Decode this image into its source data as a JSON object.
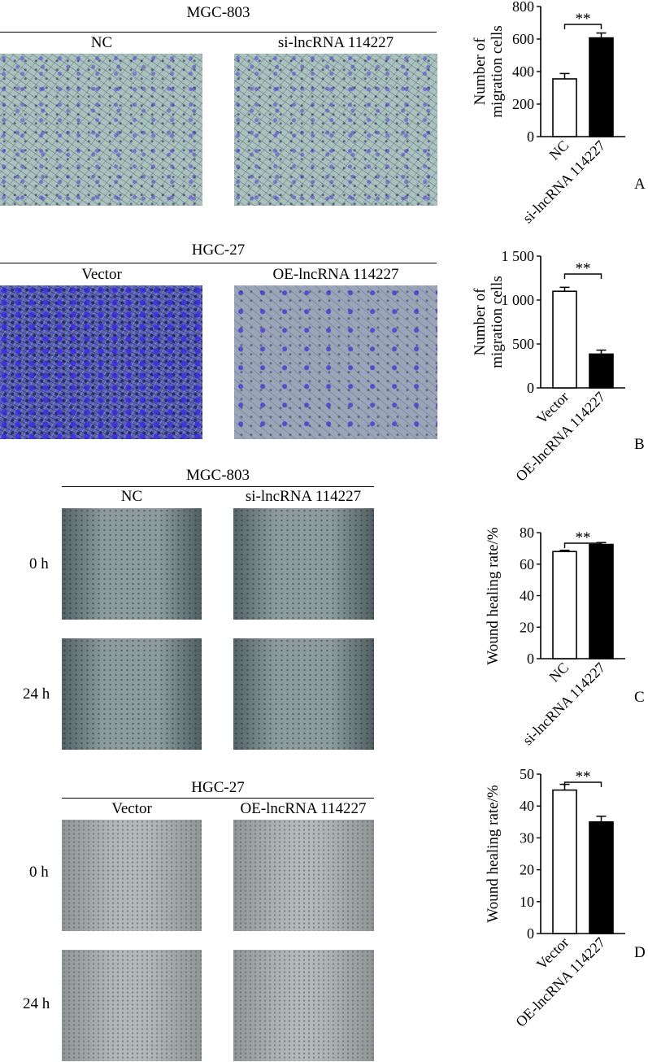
{
  "panels": {
    "A": {
      "letter": "A",
      "cell_line": "MGC-803",
      "groups": [
        "NC",
        "si-lncRNA 114227"
      ]
    },
    "B": {
      "letter": "B",
      "cell_line": "HGC-27",
      "groups": [
        "Vector",
        "OE-lncRNA 114227"
      ]
    },
    "C": {
      "letter": "C",
      "cell_line": "MGC-803",
      "groups": [
        "NC",
        "si-lncRNA 114227"
      ],
      "timepoints": [
        "0 h",
        "24 h"
      ]
    },
    "D": {
      "letter": "D",
      "cell_line": "HGC-27",
      "groups": [
        "Vector",
        "OE-lncRNA 114227"
      ],
      "timepoints": [
        "0 h",
        "24 h"
      ]
    }
  },
  "colors": {
    "control_bar": "#ffffff",
    "treatment_bar": "#000000",
    "axis": "#000000"
  },
  "chart_data": [
    {
      "type": "bar",
      "panel": "A",
      "categories": [
        "NC",
        "si-lncRNA 114227"
      ],
      "values": [
        355,
        607
      ],
      "errors": [
        33,
        30
      ],
      "ylabel": "Number of migration cells",
      "ylim": [
        0,
        800
      ],
      "yticks": [
        0,
        200,
        400,
        600,
        800
      ],
      "ytick_labels": [
        "0",
        "200",
        "400",
        "600",
        "800"
      ],
      "significance": "**",
      "bar_colors": [
        "#ffffff",
        "#000000"
      ]
    },
    {
      "type": "bar",
      "panel": "B",
      "categories": [
        "Vector",
        "OE-lncRNA 114227"
      ],
      "values": [
        1100,
        385
      ],
      "errors": [
        45,
        45
      ],
      "ylabel": "Number of migration cells",
      "ylim": [
        0,
        1500
      ],
      "yticks": [
        0,
        500,
        1000,
        1500
      ],
      "ytick_labels": [
        "0",
        "500",
        "1 000",
        "1 500"
      ],
      "significance": "**",
      "bar_colors": [
        "#ffffff",
        "#000000"
      ]
    },
    {
      "type": "bar",
      "panel": "C",
      "categories": [
        "NC",
        "si-lncRNA 114227"
      ],
      "values": [
        68,
        72.5
      ],
      "errors": [
        0.8,
        1.2
      ],
      "ylabel": "Wound healing rate/%",
      "ylim": [
        0,
        80
      ],
      "yticks": [
        0,
        20,
        40,
        60,
        80
      ],
      "ytick_labels": [
        "0",
        "20",
        "40",
        "60",
        "80"
      ],
      "significance": "**",
      "bar_colors": [
        "#ffffff",
        "#000000"
      ]
    },
    {
      "type": "bar",
      "panel": "D",
      "categories": [
        "Vector",
        "OE-lncRNA 114227"
      ],
      "values": [
        45,
        35
      ],
      "errors": [
        1.8,
        1.8
      ],
      "ylabel": "Wound healing rate/%",
      "ylim": [
        0,
        50
      ],
      "yticks": [
        0,
        10,
        20,
        30,
        40,
        50
      ],
      "ytick_labels": [
        "0",
        "10",
        "20",
        "30",
        "40",
        "50"
      ],
      "significance": "**",
      "bar_colors": [
        "#ffffff",
        "#000000"
      ]
    }
  ]
}
